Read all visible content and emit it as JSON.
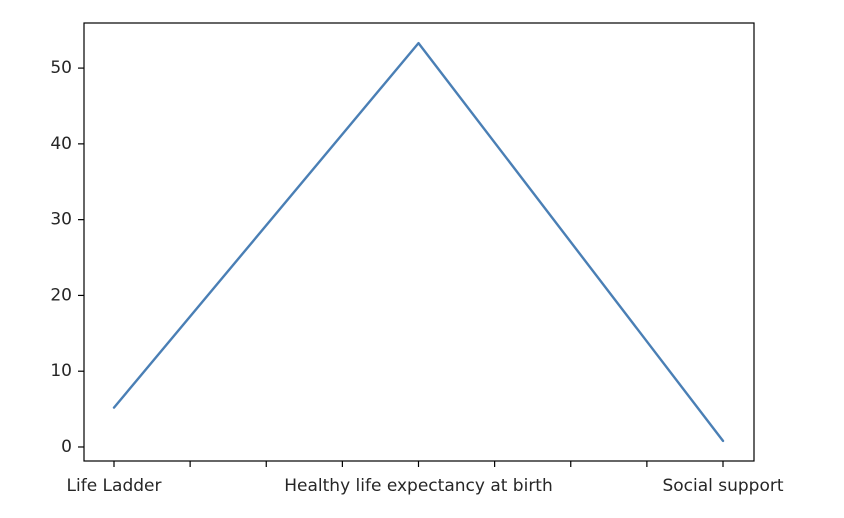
{
  "chart_data": {
    "type": "line",
    "title": "",
    "xlabel": "",
    "ylabel": "",
    "categories": [
      "Life Ladder",
      "Healthy life expectancy at birth",
      "Social support"
    ],
    "series": [
      {
        "values": [
          5.2,
          53.3,
          0.8
        ],
        "color": "#4a7fb5"
      }
    ],
    "ylim": [
      -1.85,
      55.95
    ],
    "yticks": [
      0,
      10,
      20,
      30,
      40,
      50
    ],
    "ytick_labels": [
      "0",
      "10",
      "20",
      "30",
      "40",
      "50"
    ],
    "minor_xtick_count": 8,
    "grid": false,
    "legend": "none"
  }
}
